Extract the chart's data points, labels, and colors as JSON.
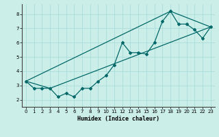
{
  "title": "",
  "xlabel": "Humidex (Indice chaleur)",
  "background_color": "#cceee8",
  "grid_color": "#aaddda",
  "line_color": "#006868",
  "xlim": [
    -0.5,
    23.5
  ],
  "ylim": [
    1.5,
    8.7
  ],
  "x_ticks": [
    0,
    1,
    2,
    3,
    4,
    5,
    6,
    7,
    8,
    9,
    10,
    11,
    12,
    13,
    14,
    15,
    16,
    17,
    18,
    19,
    20,
    21,
    22,
    23
  ],
  "y_ticks": [
    2,
    3,
    4,
    5,
    6,
    7,
    8
  ],
  "line1_x": [
    0,
    1,
    2,
    3,
    4,
    5,
    6,
    7,
    8,
    9,
    10,
    11,
    12,
    13,
    14,
    15,
    16,
    17,
    18,
    19,
    20,
    21,
    22,
    23
  ],
  "line1_y": [
    3.3,
    2.8,
    2.8,
    2.8,
    2.2,
    2.45,
    2.2,
    2.8,
    2.8,
    3.3,
    3.7,
    4.45,
    6.0,
    5.3,
    5.3,
    5.2,
    6.0,
    7.5,
    8.2,
    7.3,
    7.3,
    6.9,
    6.3,
    7.1
  ],
  "line2_x": [
    0,
    3,
    23
  ],
  "line2_y": [
    3.3,
    2.8,
    7.1
  ],
  "line3_x": [
    0,
    18,
    23
  ],
  "line3_y": [
    3.3,
    8.2,
    7.1
  ]
}
